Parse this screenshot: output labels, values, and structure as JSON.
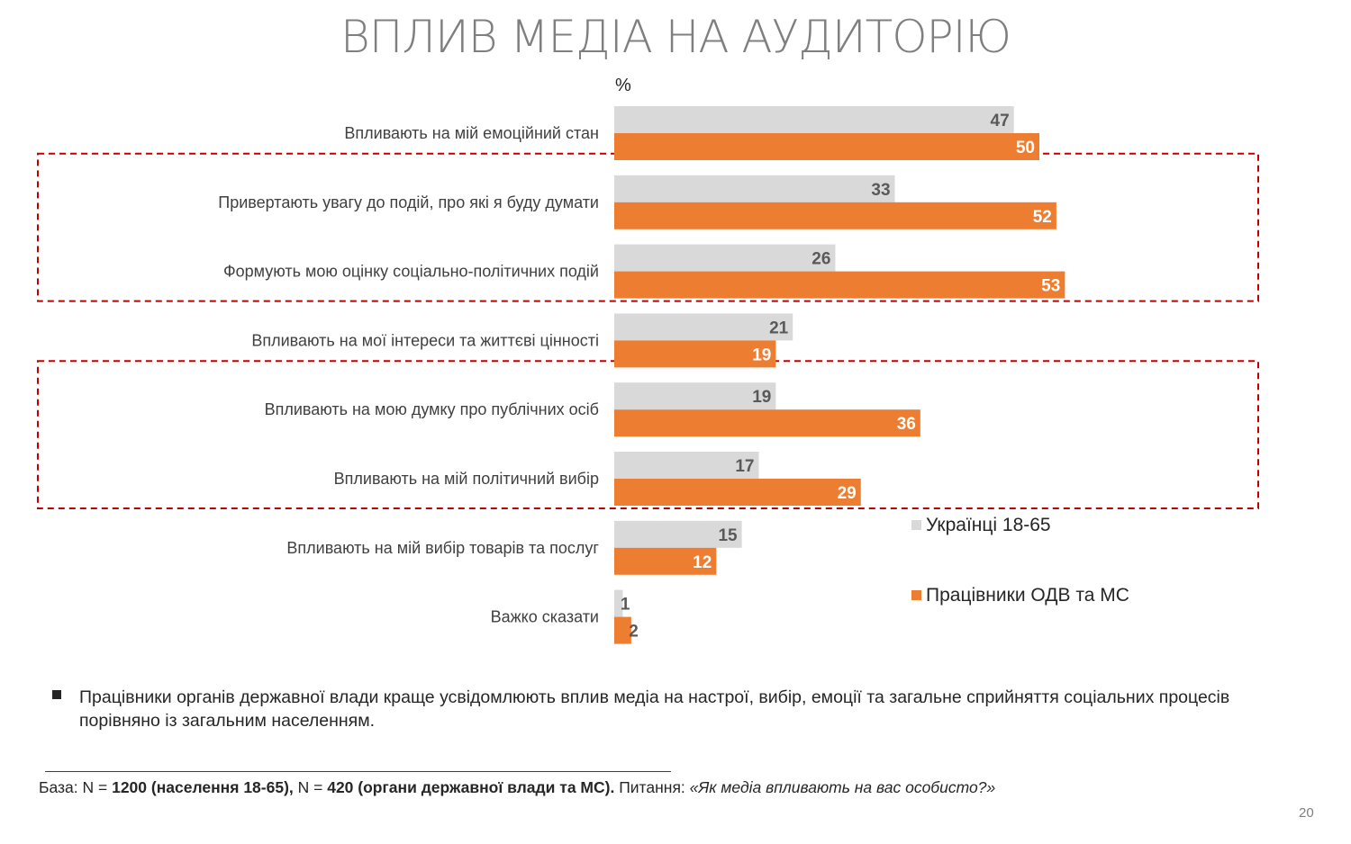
{
  "slide": {
    "title": "ВПЛИВ МЕДІА НА АУДИТОРІЮ",
    "page_number": "20"
  },
  "chart_data": {
    "type": "bar",
    "orientation": "horizontal",
    "unit_label": "%",
    "categories": [
      "Впливають на мій емоційний стан",
      "Привертають увагу до подій, про які я буду думати",
      "Формують мою оцінку соціально-політичних подій",
      "Впливають на мої інтереси та життєві цінності",
      "Впливають на мою думку про публічних осіб",
      "Впливають на мій політичний вибір",
      "Впливають на мій вибір товарів та послуг",
      "Важко сказати"
    ],
    "series": [
      {
        "name": "Українці 18-65",
        "color": "#d9d9d9",
        "label_color": "#595959",
        "values": [
          47,
          33,
          26,
          21,
          19,
          17,
          15,
          1
        ]
      },
      {
        "name": "Працівники ОДВ та МС",
        "color": "#ed7d31",
        "label_color": "#ffffff",
        "values": [
          50,
          52,
          53,
          19,
          36,
          29,
          12,
          2
        ]
      }
    ],
    "xlim": [
      0,
      100
    ],
    "highlight_groups": [
      [
        1,
        2
      ],
      [
        4,
        5
      ]
    ],
    "highlight_color": "#c00000",
    "legend_position": "right"
  },
  "bullet": {
    "text": "Працівники органів державної влади краще усвідомлюють вплив медіа на настрої, вибір, емоції та загальне сприйняття соціальних процесів порівняно із загальним населенням."
  },
  "footnote": {
    "base_prefix": "База: N = ",
    "base_n1": "1200 (населення 18-65),",
    "base_mid": " N = ",
    "base_n2": "420 (органи державної влади та МС).",
    "question_prefix": " Питання: ",
    "question": "«Як медіа впливають на вас особисто?»"
  }
}
